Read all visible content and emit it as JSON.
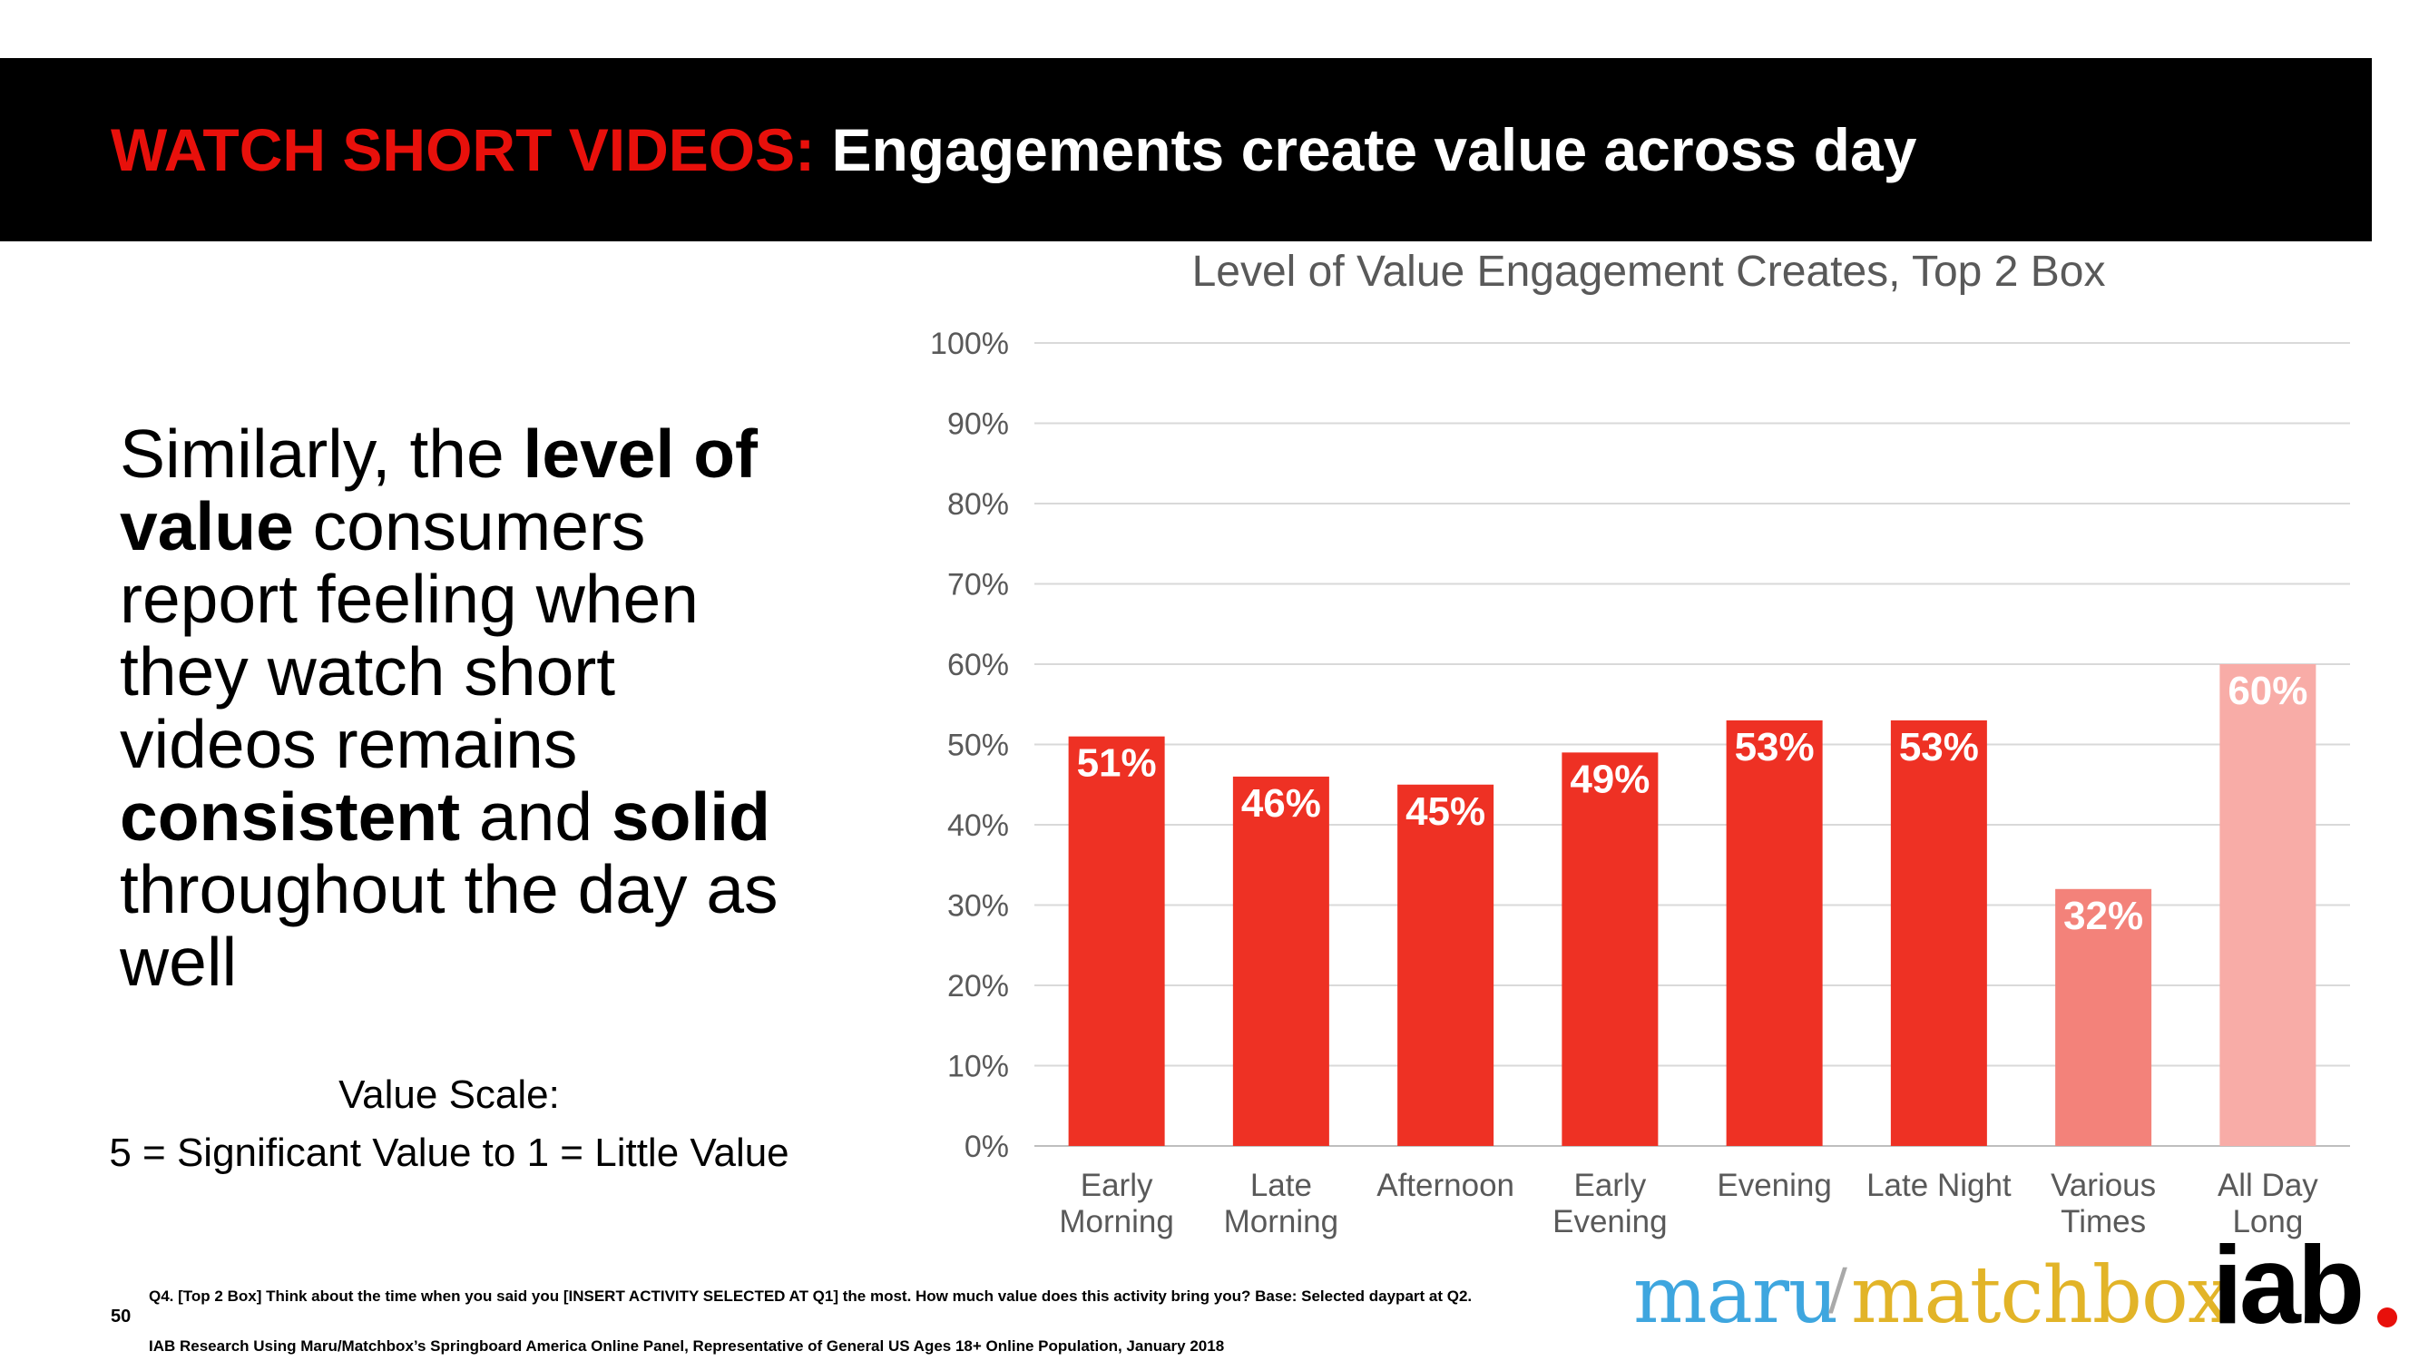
{
  "header": {
    "title_red": "WATCH SHORT VIDEOS:",
    "title_white": "Engagements create value across day"
  },
  "body": {
    "paragraph": [
      {
        "text": "Similarly, the ",
        "bold": false
      },
      {
        "text": "level of value",
        "bold": true
      },
      {
        "text": " consumers report feeling when they watch short videos remains ",
        "bold": false
      },
      {
        "text": "consistent",
        "bold": true
      },
      {
        "text": " and ",
        "bold": false
      },
      {
        "text": "solid",
        "bold": true
      },
      {
        "text": " throughout the day as well",
        "bold": false
      }
    ],
    "scale_title": "Value Scale:",
    "scale_desc": "5 = Significant Value to 1 = Little Value"
  },
  "chart_data": {
    "type": "bar",
    "title": "Level of Value Engagement Creates, Top 2 Box",
    "categories": [
      [
        "Early",
        "Morning"
      ],
      [
        "Late",
        "Morning"
      ],
      [
        "Afternoon"
      ],
      [
        "Early",
        "Evening"
      ],
      [
        "Evening"
      ],
      [
        "Late Night"
      ],
      [
        "Various",
        "Times"
      ],
      [
        "All Day",
        "Long"
      ]
    ],
    "values": [
      51,
      46,
      45,
      49,
      53,
      53,
      32,
      60
    ],
    "data_labels": [
      "51%",
      "46%",
      "45%",
      "49%",
      "53%",
      "53%",
      "32%",
      "60%"
    ],
    "bar_colors": [
      "#ee3124",
      "#ee3124",
      "#ee3124",
      "#ee3124",
      "#ee3124",
      "#ee3124",
      "#f3827a",
      "#f8aca7"
    ],
    "ylim": [
      0,
      100
    ],
    "yticks": [
      0,
      10,
      20,
      30,
      40,
      50,
      60,
      70,
      80,
      90,
      100
    ],
    "ytick_labels": [
      "0%",
      "10%",
      "20%",
      "30%",
      "40%",
      "50%",
      "60%",
      "70%",
      "80%",
      "90%",
      "100%"
    ],
    "grid": true,
    "legend": "none"
  },
  "footer": {
    "page_number": "50",
    "question": "Q4. [Top 2 Box] Think about the time when you said you [INSERT ACTIVITY SELECTED AT Q1] the most.  How much value does this activity bring you? Base: Selected daypart at Q2.",
    "source": "IAB Research Using Maru/Matchbox’s Springboard America Online Panel, Representative of General US Ages 18+ Online Population, January 2018"
  },
  "logos": {
    "maru": "maru",
    "slash": "/",
    "matchbox": "matchbox",
    "iab": "iab"
  },
  "colors": {
    "accent_red": "#e8100b",
    "banner": "#000000",
    "bar": "#ee3124"
  }
}
